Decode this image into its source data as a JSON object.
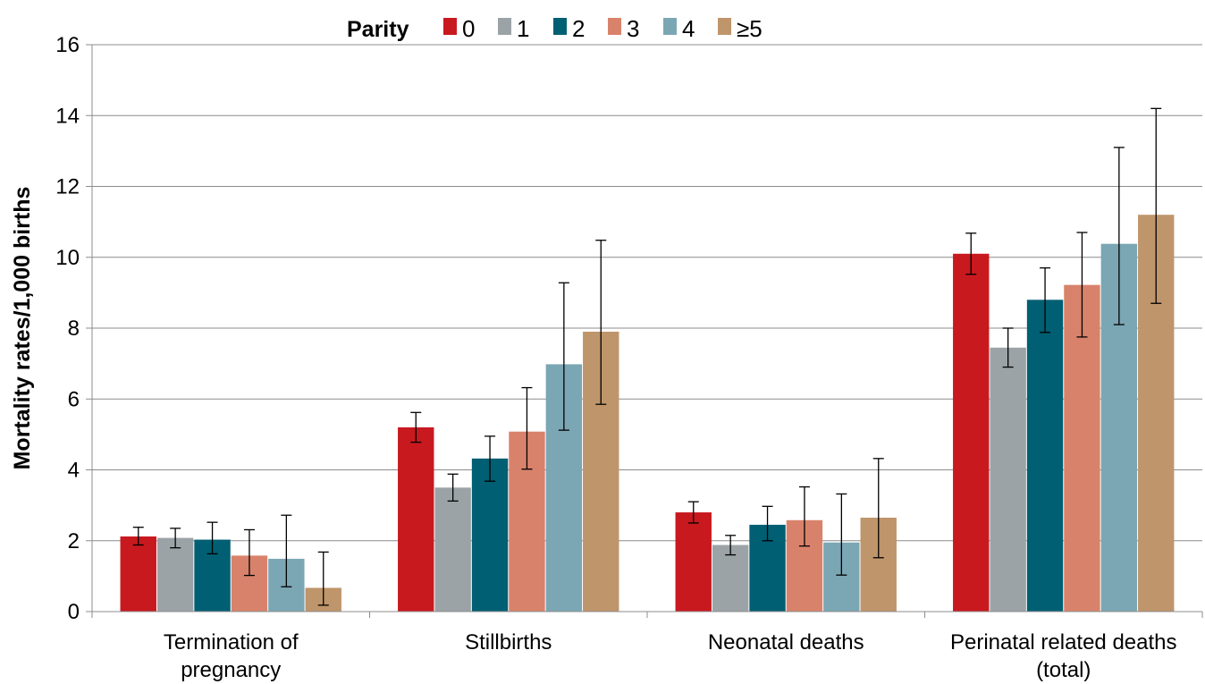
{
  "chart_data": {
    "type": "bar",
    "ylabel": "Mortality rates/1,000 births",
    "xlabel": "",
    "ylim": [
      0,
      16
    ],
    "yticks": [
      "0",
      "2",
      "4",
      "6",
      "8",
      "10",
      "12",
      "14",
      "16"
    ],
    "grid": true,
    "legend": {
      "title": "Parity",
      "placement": "top"
    },
    "categories": [
      [
        "Termination of",
        "pregnancy"
      ],
      [
        "Stillbirths"
      ],
      [
        "Neonatal deaths"
      ],
      [
        "Perinatal related deaths",
        "(total)"
      ]
    ],
    "series": [
      {
        "name": "0",
        "color": "#c8191f",
        "values": [
          2.12,
          5.2,
          2.8,
          10.1
        ],
        "err_low": [
          1.88,
          4.78,
          2.5,
          9.52
        ],
        "err_high": [
          2.38,
          5.62,
          3.1,
          10.68
        ]
      },
      {
        "name": "1",
        "color": "#9ca3a6",
        "values": [
          2.08,
          3.5,
          1.88,
          7.45
        ],
        "err_low": [
          1.8,
          3.12,
          1.6,
          6.9
        ],
        "err_high": [
          2.35,
          3.88,
          2.15,
          8.0
        ]
      },
      {
        "name": "2",
        "color": "#005f73",
        "values": [
          2.03,
          4.32,
          2.45,
          8.8
        ],
        "err_low": [
          1.63,
          3.68,
          2.0,
          7.88
        ],
        "err_high": [
          2.52,
          4.95,
          2.97,
          9.7
        ]
      },
      {
        "name": "3",
        "color": "#d9826b",
        "values": [
          1.58,
          5.08,
          2.58,
          9.22
        ],
        "err_low": [
          1.02,
          4.02,
          1.85,
          7.75
        ],
        "err_high": [
          2.31,
          6.32,
          3.52,
          10.7
        ]
      },
      {
        "name": "4",
        "color": "#7ba6b4",
        "values": [
          1.49,
          6.98,
          1.95,
          10.38
        ],
        "err_low": [
          0.7,
          5.12,
          1.03,
          8.1
        ],
        "err_high": [
          2.72,
          9.28,
          3.32,
          13.1
        ]
      },
      {
        "name": "≥5",
        "color": "#bf956b",
        "values": [
          0.67,
          7.9,
          2.65,
          11.2
        ],
        "err_low": [
          0.18,
          5.85,
          1.52,
          8.7
        ],
        "err_high": [
          1.68,
          10.48,
          4.32,
          14.2
        ]
      }
    ]
  }
}
